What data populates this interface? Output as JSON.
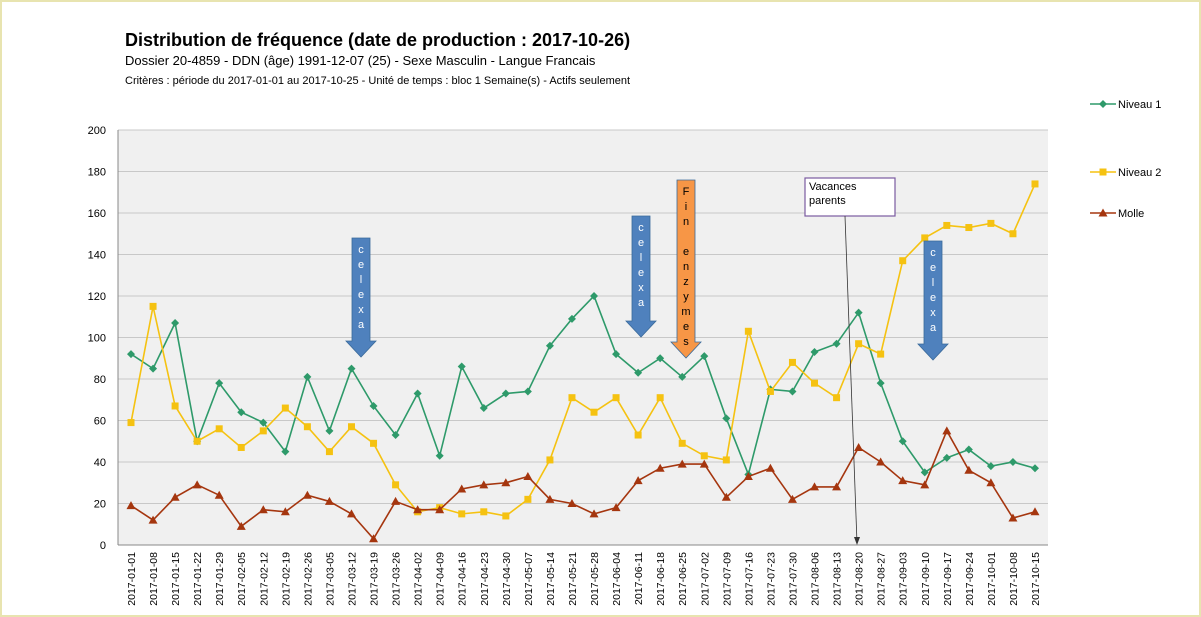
{
  "chart_data": {
    "type": "line",
    "title": "Distribution de fréquence (date de production : 2017-10-26)",
    "subtitle": "Dossier 20-4859 - DDN (âge) 1991-12-07 (25) - Sexe Masculin - Langue Francais",
    "criteria": "Critères : période du 2017-01-01 au 2017-10-25 - Unité de temps :  bloc 1 Semaine(s) - Actifs seulement",
    "categories": [
      "2017-01-01",
      "2017-01-08",
      "2017-01-15",
      "2017-01-22",
      "2017-01-29",
      "2017-02-05",
      "2017-02-12",
      "2017-02-19",
      "2017-02-26",
      "2017-03-05",
      "2017-03-12",
      "2017-03-19",
      "2017-03-26",
      "2017-04-02",
      "2017-04-09",
      "2017-04-16",
      "2017-04-23",
      "2017-04-30",
      "2017-05-07",
      "2017-05-14",
      "2017-05-21",
      "2017-05-28",
      "2017-06-04",
      "2017-06-11",
      "2017-06-18",
      "2017-06-25",
      "2017-07-02",
      "2017-07-09",
      "2017-07-16",
      "2017-07-23",
      "2017-07-30",
      "2017-08-06",
      "2017-08-13",
      "2017-08-20",
      "2017-08-27",
      "2017-09-03",
      "2017-09-10",
      "2017-09-17",
      "2017-09-24",
      "2017-10-01",
      "2017-10-08",
      "2017-10-15"
    ],
    "series": [
      {
        "name": "Niveau 1",
        "color": "#2e9a6a",
        "marker": "diamond",
        "values": [
          92,
          85,
          107,
          50,
          78,
          64,
          59,
          45,
          81,
          55,
          85,
          67,
          53,
          73,
          43,
          86,
          66,
          73,
          74,
          96,
          109,
          120,
          92,
          83,
          90,
          81,
          91,
          61,
          34,
          75,
          74,
          93,
          97,
          112,
          78,
          50,
          35,
          42,
          46,
          38,
          40,
          37
        ]
      },
      {
        "name": "Niveau 2",
        "color": "#f5c211",
        "marker": "square",
        "values": [
          59,
          115,
          67,
          50,
          56,
          47,
          55,
          66,
          57,
          45,
          57,
          49,
          29,
          16,
          18,
          15,
          16,
          14,
          22,
          41,
          71,
          64,
          71,
          53,
          71,
          49,
          43,
          41,
          103,
          74,
          88,
          78,
          71,
          97,
          92,
          137,
          148,
          154,
          153,
          155,
          150,
          174
        ]
      },
      {
        "name": "Molle",
        "color": "#a5360f",
        "marker": "triangle",
        "values": [
          19,
          12,
          23,
          29,
          24,
          9,
          17,
          16,
          24,
          21,
          15,
          3,
          21,
          17,
          17,
          27,
          29,
          30,
          33,
          22,
          20,
          15,
          18,
          31,
          37,
          39,
          39,
          23,
          33,
          37,
          22,
          28,
          28,
          47,
          40,
          31,
          29,
          55,
          36,
          30,
          13,
          16
        ]
      }
    ],
    "ylim": [
      0,
      200
    ],
    "yticks": [
      0,
      20,
      40,
      60,
      80,
      100,
      120,
      140,
      160,
      180,
      200
    ],
    "grid": true,
    "annotations": [
      "celexa",
      "celexa",
      "Fin enzymes",
      "celexa",
      "Vacances parents"
    ]
  }
}
